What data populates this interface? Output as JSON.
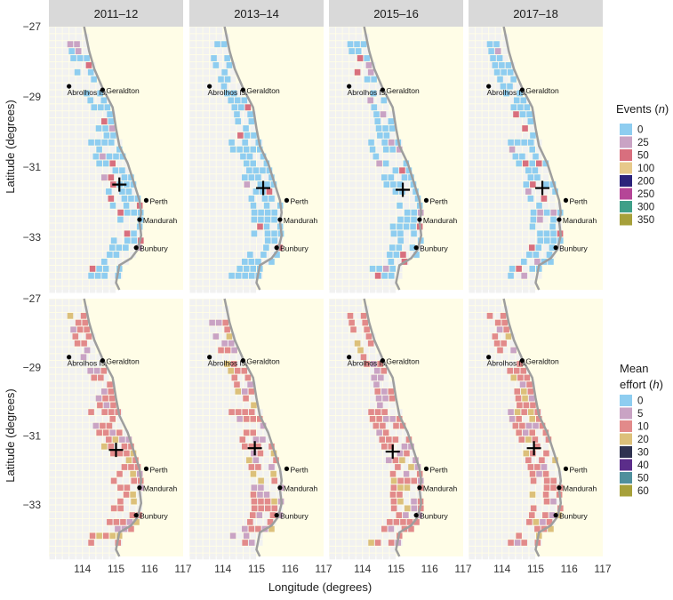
{
  "colors": {
    "land": "#fffde7",
    "ocean_cell": "#f1f1f1",
    "strip": "#d9d9d9",
    "coast": "#9e9e9e",
    "point": "#000000"
  },
  "axes": {
    "xlabel": "Longitude (degrees)",
    "ylabel_top": "Latitude (degrees)",
    "ylabel_bottom": "Latitude (degrees)",
    "x_ticks": [
      "114",
      "115",
      "116",
      "117"
    ],
    "y_ticks_top": [
      "−27",
      "−29",
      "−31",
      "−33"
    ],
    "y_ticks_bottom": [
      "−27",
      "−29",
      "−31",
      "−33"
    ],
    "xlim": [
      113,
      117
    ],
    "ylim": [
      -34.5,
      -27
    ]
  },
  "panels": {
    "columns": [
      "2011–12",
      "2013–14",
      "2015–16",
      "2017–18"
    ]
  },
  "places": [
    {
      "name": "Abrolhos Is.",
      "lon": 113.6,
      "lat": -28.7
    },
    {
      "name": "Geraldton",
      "lon": 114.6,
      "lat": -28.8
    },
    {
      "name": "Perth",
      "lon": 115.9,
      "lat": -31.95
    },
    {
      "name": "Mandurah",
      "lon": 115.7,
      "lat": -32.5
    },
    {
      "name": "Bunbury",
      "lon": 115.6,
      "lat": -33.3
    }
  ],
  "centroids": {
    "events": [
      {
        "lon": 115.1,
        "lat": -31.5
      },
      {
        "lon": 115.2,
        "lat": -31.6
      },
      {
        "lon": 115.2,
        "lat": -31.65
      },
      {
        "lon": 115.2,
        "lat": -31.6
      }
    ],
    "effort": [
      {
        "lon": 115.0,
        "lat": -31.4
      },
      {
        "lon": 114.95,
        "lat": -31.35
      },
      {
        "lon": 114.9,
        "lat": -31.45
      },
      {
        "lon": 114.95,
        "lat": -31.35
      }
    ]
  },
  "legends": {
    "events": {
      "title": "Events (n)",
      "title_main": "Events (",
      "title_var": "n",
      "title_end": ")",
      "labels": [
        "0",
        "25",
        "50",
        "100",
        "200",
        "250",
        "300",
        "350"
      ],
      "colors": [
        "#8ecdf0",
        "#c9a3c4",
        "#d86f7e",
        "#e7c98a",
        "#2c237a",
        "#b54597",
        "#3f9f88",
        "#a6a03a"
      ]
    },
    "effort": {
      "title_line1": "Mean",
      "title_line2": "effort (h)",
      "title_main": "effort (",
      "title_var": "h",
      "title_end": ")",
      "labels": [
        "0",
        "5",
        "10",
        "20",
        "30",
        "40",
        "50",
        "60"
      ],
      "colors": [
        "#8ecdf0",
        "#c9a3c4",
        "#e28a8a",
        "#dcc07a",
        "#2f3250",
        "#5b2d8a",
        "#4f8f9c",
        "#a6a03a"
      ]
    }
  }
}
